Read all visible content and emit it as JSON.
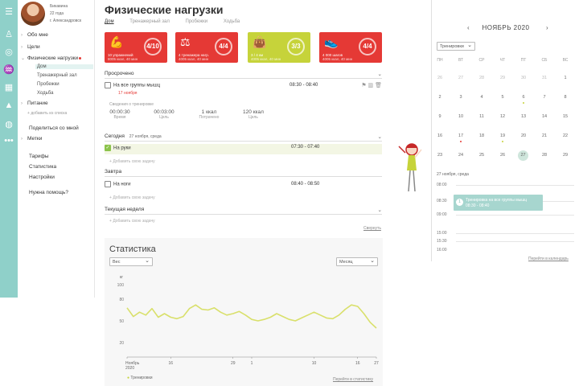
{
  "user": {
    "name": "Бикавина",
    "age": "22 года",
    "city": "г. Александровск"
  },
  "menu": {
    "about": "Обо мне",
    "goals": "Цели",
    "physical": "Физические нагрузки",
    "home": "Дом",
    "gym": "Тренажерный зал",
    "jogging": "Пробежки",
    "walking": "Ходьба",
    "nutrition": "Питание",
    "add_list": "добавить из списка",
    "share": "Поделиться со мной",
    "tags": "Метки",
    "tariffs": "Тарифы",
    "statistics": "Статистика",
    "settings": "Настройки",
    "help": "Нужна помощь?"
  },
  "page": {
    "title": "Физические нагрузки",
    "tabs": [
      "Дом",
      "Тренажерный зал",
      "Пробежки",
      "Ходьба"
    ]
  },
  "cards": [
    {
      "line1": "10 упражнений",
      "line2": "8005 ккал, 40 мин",
      "progress": "4",
      "total": "10",
      "color": "#e53935",
      "icon": "muscle-icon"
    },
    {
      "line1": "4 тренажера нагр.",
      "line2": "4005 ккал, 40 мин",
      "progress": "4",
      "total": "4",
      "color": "#e53935",
      "icon": "scale-icon"
    },
    {
      "line1": "3 / 4 км",
      "line2": "4005 ккал, 40 мин",
      "progress": "3",
      "total": "3",
      "color": "#c6d33a",
      "icon": "bag-icon"
    },
    {
      "line1": "4 000 шагов",
      "line2": "4005 ккал, 40 мин",
      "progress": "4",
      "total": "4",
      "color": "#e53935",
      "icon": "sneaker-icon"
    }
  ],
  "overdue": {
    "header": "Просрочено",
    "task": "На все группы мышц",
    "date": "17 ноября",
    "time": "08:30 - 08:40",
    "info_label": "Сведения о тренировке",
    "stats": [
      {
        "value": "00:00:30",
        "label": "Время"
      },
      {
        "value": "00:03:00",
        "label": "Цель"
      },
      {
        "value": "1 ккал",
        "label": "Потрачено"
      },
      {
        "value": "120 ккал",
        "label": "Цель"
      }
    ]
  },
  "today": {
    "header": "Сегодня",
    "date": "27 ноября, среда",
    "task": "На руки",
    "time": "07:30 - 07:40",
    "add": "Добавить свою задачу"
  },
  "tomorrow": {
    "header": "Завтра",
    "task": "На ноги",
    "time": "08:40 - 08:50",
    "add": "Добавить свою задачу"
  },
  "week": {
    "header": "Текущая неделя",
    "add": "Добавить свою задачу",
    "collapse": "Свернуть"
  },
  "stats_panel": {
    "title": "Статистика",
    "metric": "Вес",
    "period": "Месяц",
    "legend": "Тренировки",
    "link": "Перейти в статистику"
  },
  "chart_data": {
    "type": "line",
    "ylabel": "кг",
    "ylim": [
      0,
      100
    ],
    "yticks": [
      100,
      80,
      50,
      20
    ],
    "xticks": [
      "Ноябрь 2020",
      "16",
      "29",
      "1",
      "10",
      "16",
      "27"
    ],
    "series": [
      {
        "name": "Тренировки",
        "color": "#d9e06b",
        "x": [
          0,
          1,
          2,
          3,
          4,
          5,
          6,
          7,
          8,
          9,
          10,
          11,
          12,
          13,
          14,
          15,
          16,
          17,
          18,
          19,
          20,
          21,
          22,
          23,
          24,
          25,
          26,
          27,
          28,
          29,
          30,
          31,
          32,
          33,
          34,
          35,
          36,
          37,
          38,
          39,
          40
        ],
        "values": [
          68,
          56,
          62,
          58,
          67,
          55,
          60,
          55,
          53,
          56,
          67,
          72,
          66,
          65,
          68,
          62,
          58,
          60,
          63,
          58,
          52,
          50,
          52,
          55,
          60,
          56,
          52,
          50,
          54,
          58,
          62,
          58,
          54,
          53,
          58,
          66,
          72,
          70,
          60,
          48,
          40
        ]
      }
    ]
  },
  "calendar": {
    "month": "НОЯБРЬ 2020",
    "filter": "Тренировки",
    "weekdays": [
      "ПН",
      "ВТ",
      "СР",
      "ЧТ",
      "ПТ",
      "СБ",
      "ВС"
    ],
    "days": [
      [
        "26",
        "27",
        "28",
        "29",
        "30",
        "31",
        "1"
      ],
      [
        "2",
        "3",
        "4",
        "5",
        "6",
        "7",
        "8"
      ],
      [
        "9",
        "10",
        "11",
        "12",
        "13",
        "14",
        "15"
      ],
      [
        "16",
        "17",
        "18",
        "19",
        "20",
        "21",
        "22"
      ],
      [
        "23",
        "24",
        "25",
        "26",
        "27",
        "28",
        "29"
      ]
    ],
    "selected_date": "27 ноября, среда",
    "hours": [
      "08:00",
      "08:30",
      "09:00",
      "15:00",
      "15:30",
      "16:00"
    ],
    "event_title": "Тренировка на все группы мышц",
    "event_time": "08:30 - 08:40",
    "event_number": "1",
    "link": "Перейти в календарь"
  }
}
